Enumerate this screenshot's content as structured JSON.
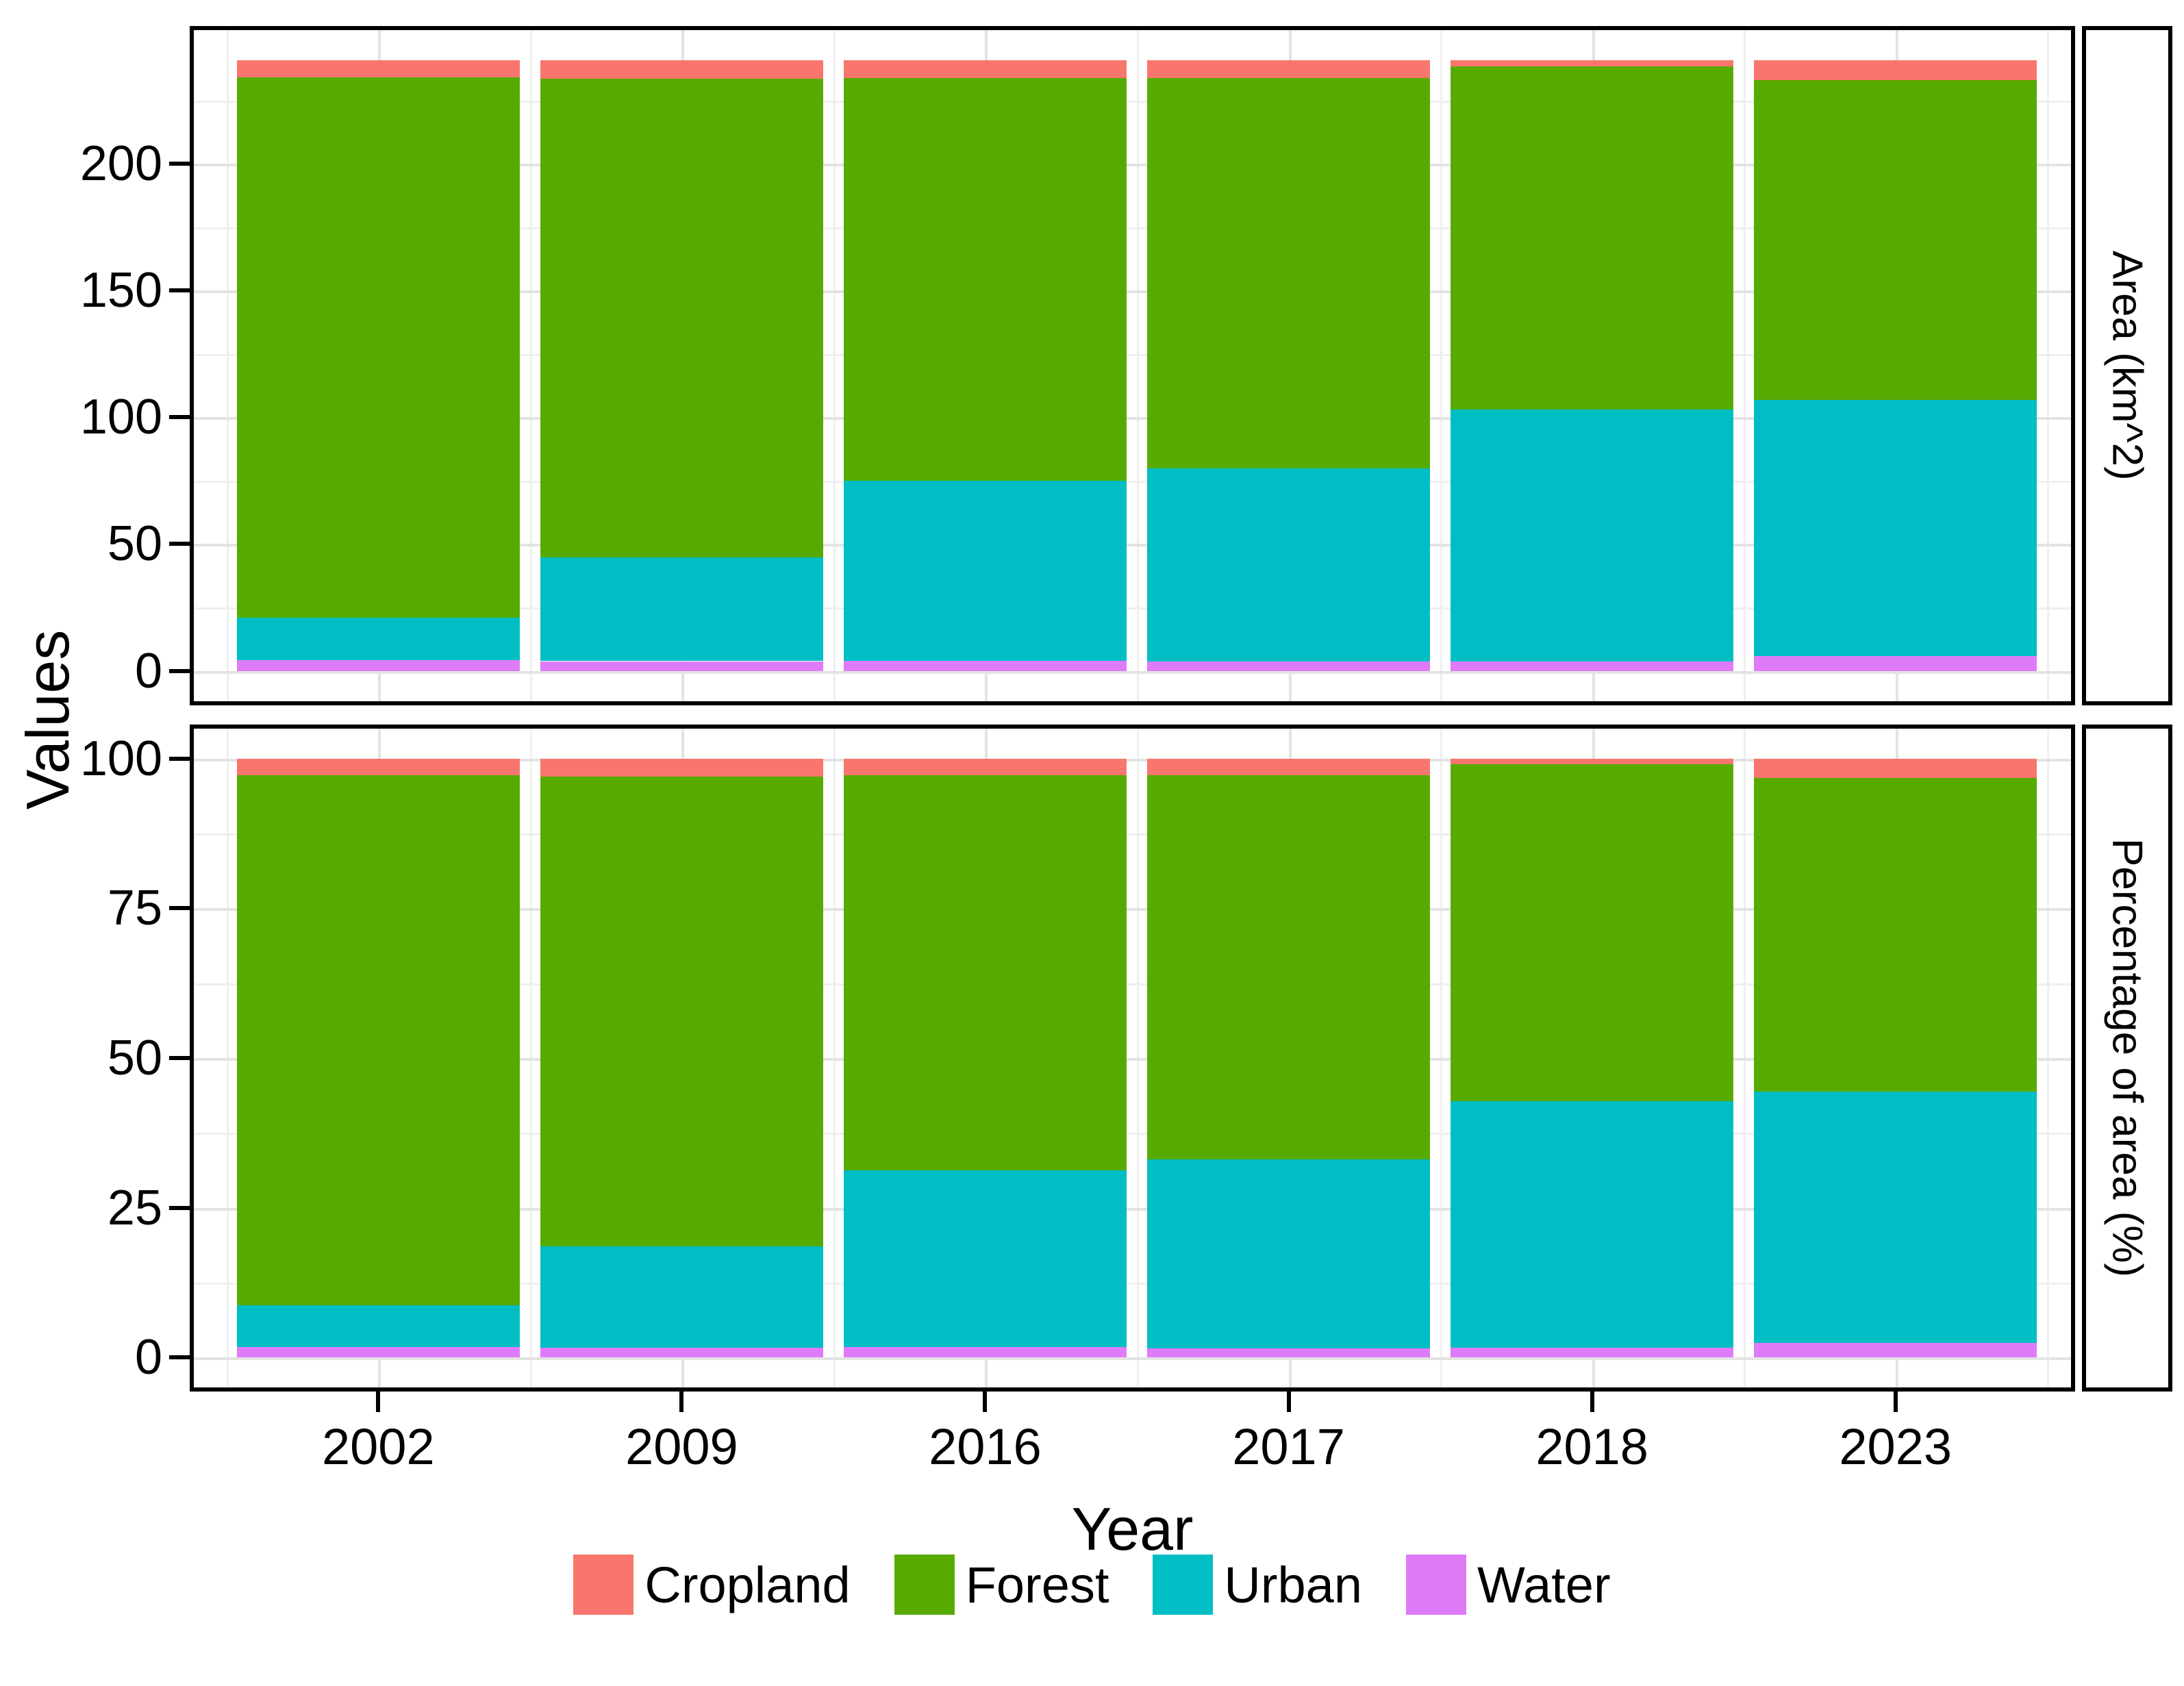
{
  "axis": {
    "y_label": "Values",
    "x_label": "Year"
  },
  "colors": {
    "Cropland": "#F8766D",
    "Forest": "#57AB00",
    "Urban": "#00BEC4",
    "Water": "#DF7BF8"
  },
  "legend": {
    "items": [
      "Cropland",
      "Forest",
      "Urban",
      "Water"
    ]
  },
  "chart_data": [
    {
      "type": "bar",
      "stacked": true,
      "facet_label": "Area (km^2)",
      "categories": [
        "2002",
        "2009",
        "2016",
        "2017",
        "2018",
        "2023"
      ],
      "stack_order_bottom_to_top": [
        "Water",
        "Urban",
        "Forest",
        "Cropland"
      ],
      "series": [
        {
          "name": "Water",
          "values": [
            4.2,
            3.8,
            4.0,
            3.6,
            3.8,
            5.7
          ]
        },
        {
          "name": "Urban",
          "values": [
            16.7,
            40.8,
            71.0,
            76.1,
            99.2,
            101.2
          ]
        },
        {
          "name": "Forest",
          "values": [
            213.1,
            188.9,
            158.9,
            154.2,
            135.5,
            126.2
          ]
        },
        {
          "name": "Cropland",
          "values": [
            6.7,
            7.2,
            6.8,
            6.8,
            2.2,
            7.6
          ]
        }
      ],
      "bar_totals": [
        240.7,
        240.7,
        240.7,
        240.7,
        240.7,
        240.7
      ],
      "yticks": [
        0,
        50,
        100,
        150,
        200
      ],
      "minor_gridlines": [
        25,
        75,
        125,
        175,
        225
      ],
      "ylim": [
        -12,
        252.7
      ],
      "grid": true,
      "legend_position": "bottom"
    },
    {
      "type": "bar",
      "stacked": true,
      "facet_label": "Percentage of area (%)",
      "categories": [
        "2002",
        "2009",
        "2016",
        "2017",
        "2018",
        "2023"
      ],
      "stack_order_bottom_to_top": [
        "Water",
        "Urban",
        "Forest",
        "Cropland"
      ],
      "series": [
        {
          "name": "Water",
          "values": [
            1.7,
            1.6,
            1.7,
            1.5,
            1.6,
            2.4
          ]
        },
        {
          "name": "Urban",
          "values": [
            7.0,
            16.9,
            29.5,
            31.6,
            41.2,
            42.0
          ]
        },
        {
          "name": "Forest",
          "values": [
            88.5,
            78.5,
            66.0,
            64.1,
            56.3,
            52.4
          ]
        },
        {
          "name": "Cropland",
          "values": [
            2.8,
            3.0,
            2.8,
            2.8,
            0.9,
            3.2
          ]
        }
      ],
      "bar_totals": [
        100,
        100,
        100,
        100,
        100,
        100
      ],
      "yticks": [
        0,
        25,
        50,
        75,
        100
      ],
      "minor_gridlines": [
        12.5,
        37.5,
        62.5,
        87.5
      ],
      "ylim": [
        -5,
        105
      ],
      "grid": true,
      "legend_position": "bottom"
    }
  ]
}
